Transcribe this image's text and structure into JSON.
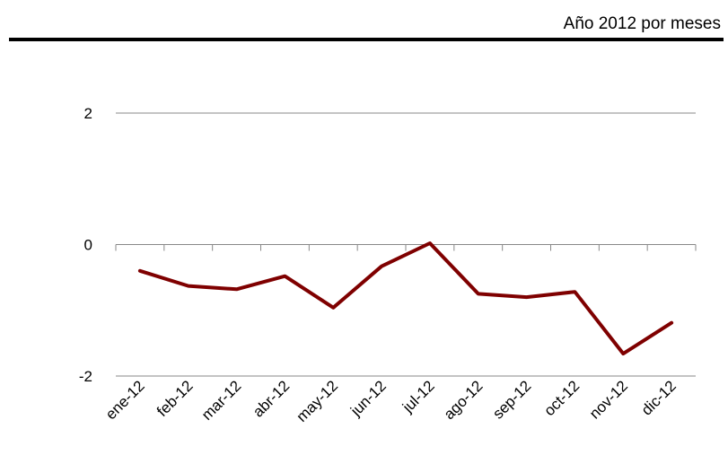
{
  "subtitle": "Año 2012 por meses",
  "chart_data": {
    "type": "line",
    "categories": [
      "ene-12",
      "feb-12",
      "mar-12",
      "abr-12",
      "may-12",
      "jun-12",
      "jul-12",
      "ago-12",
      "sep-12",
      "oct-12",
      "nov-12",
      "dic-12"
    ],
    "series": [
      {
        "values": [
          -0.4,
          -0.63,
          -0.68,
          -0.48,
          -0.96,
          -0.33,
          0.02,
          -0.75,
          -0.8,
          -0.72,
          -1.66,
          -1.19
        ]
      }
    ],
    "yticks": [
      -2,
      0,
      2
    ],
    "ylim": [
      -2,
      2
    ],
    "grid": true,
    "legend": "none",
    "colors": {
      "line": "#7f0000",
      "grid": "#888888",
      "axis": "#888888"
    }
  }
}
